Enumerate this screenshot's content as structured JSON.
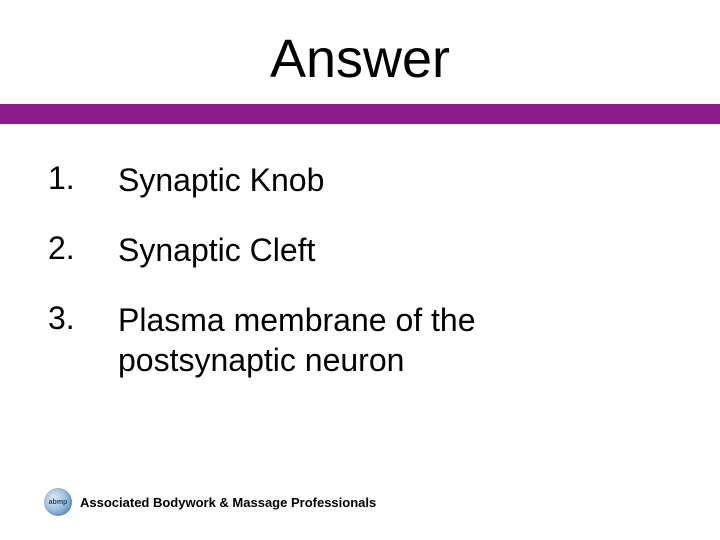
{
  "slide": {
    "title": "Answer",
    "divider_color": "#8d1b8d",
    "background_color": "#ffffff",
    "title_fontsize": 54,
    "title_color": "#000000",
    "list_fontsize": 32,
    "list_color": "#000000",
    "items": [
      {
        "num": "1.",
        "text": "Synaptic Knob"
      },
      {
        "num": "2.",
        "text": "Synaptic Cleft"
      },
      {
        "num": "3.",
        "text": "Plasma membrane of the postsynaptic neuron"
      }
    ],
    "footer": {
      "logo_text": "abmp",
      "text": "Associated Bodywork & Massage Professionals",
      "fontsize": 13
    }
  }
}
